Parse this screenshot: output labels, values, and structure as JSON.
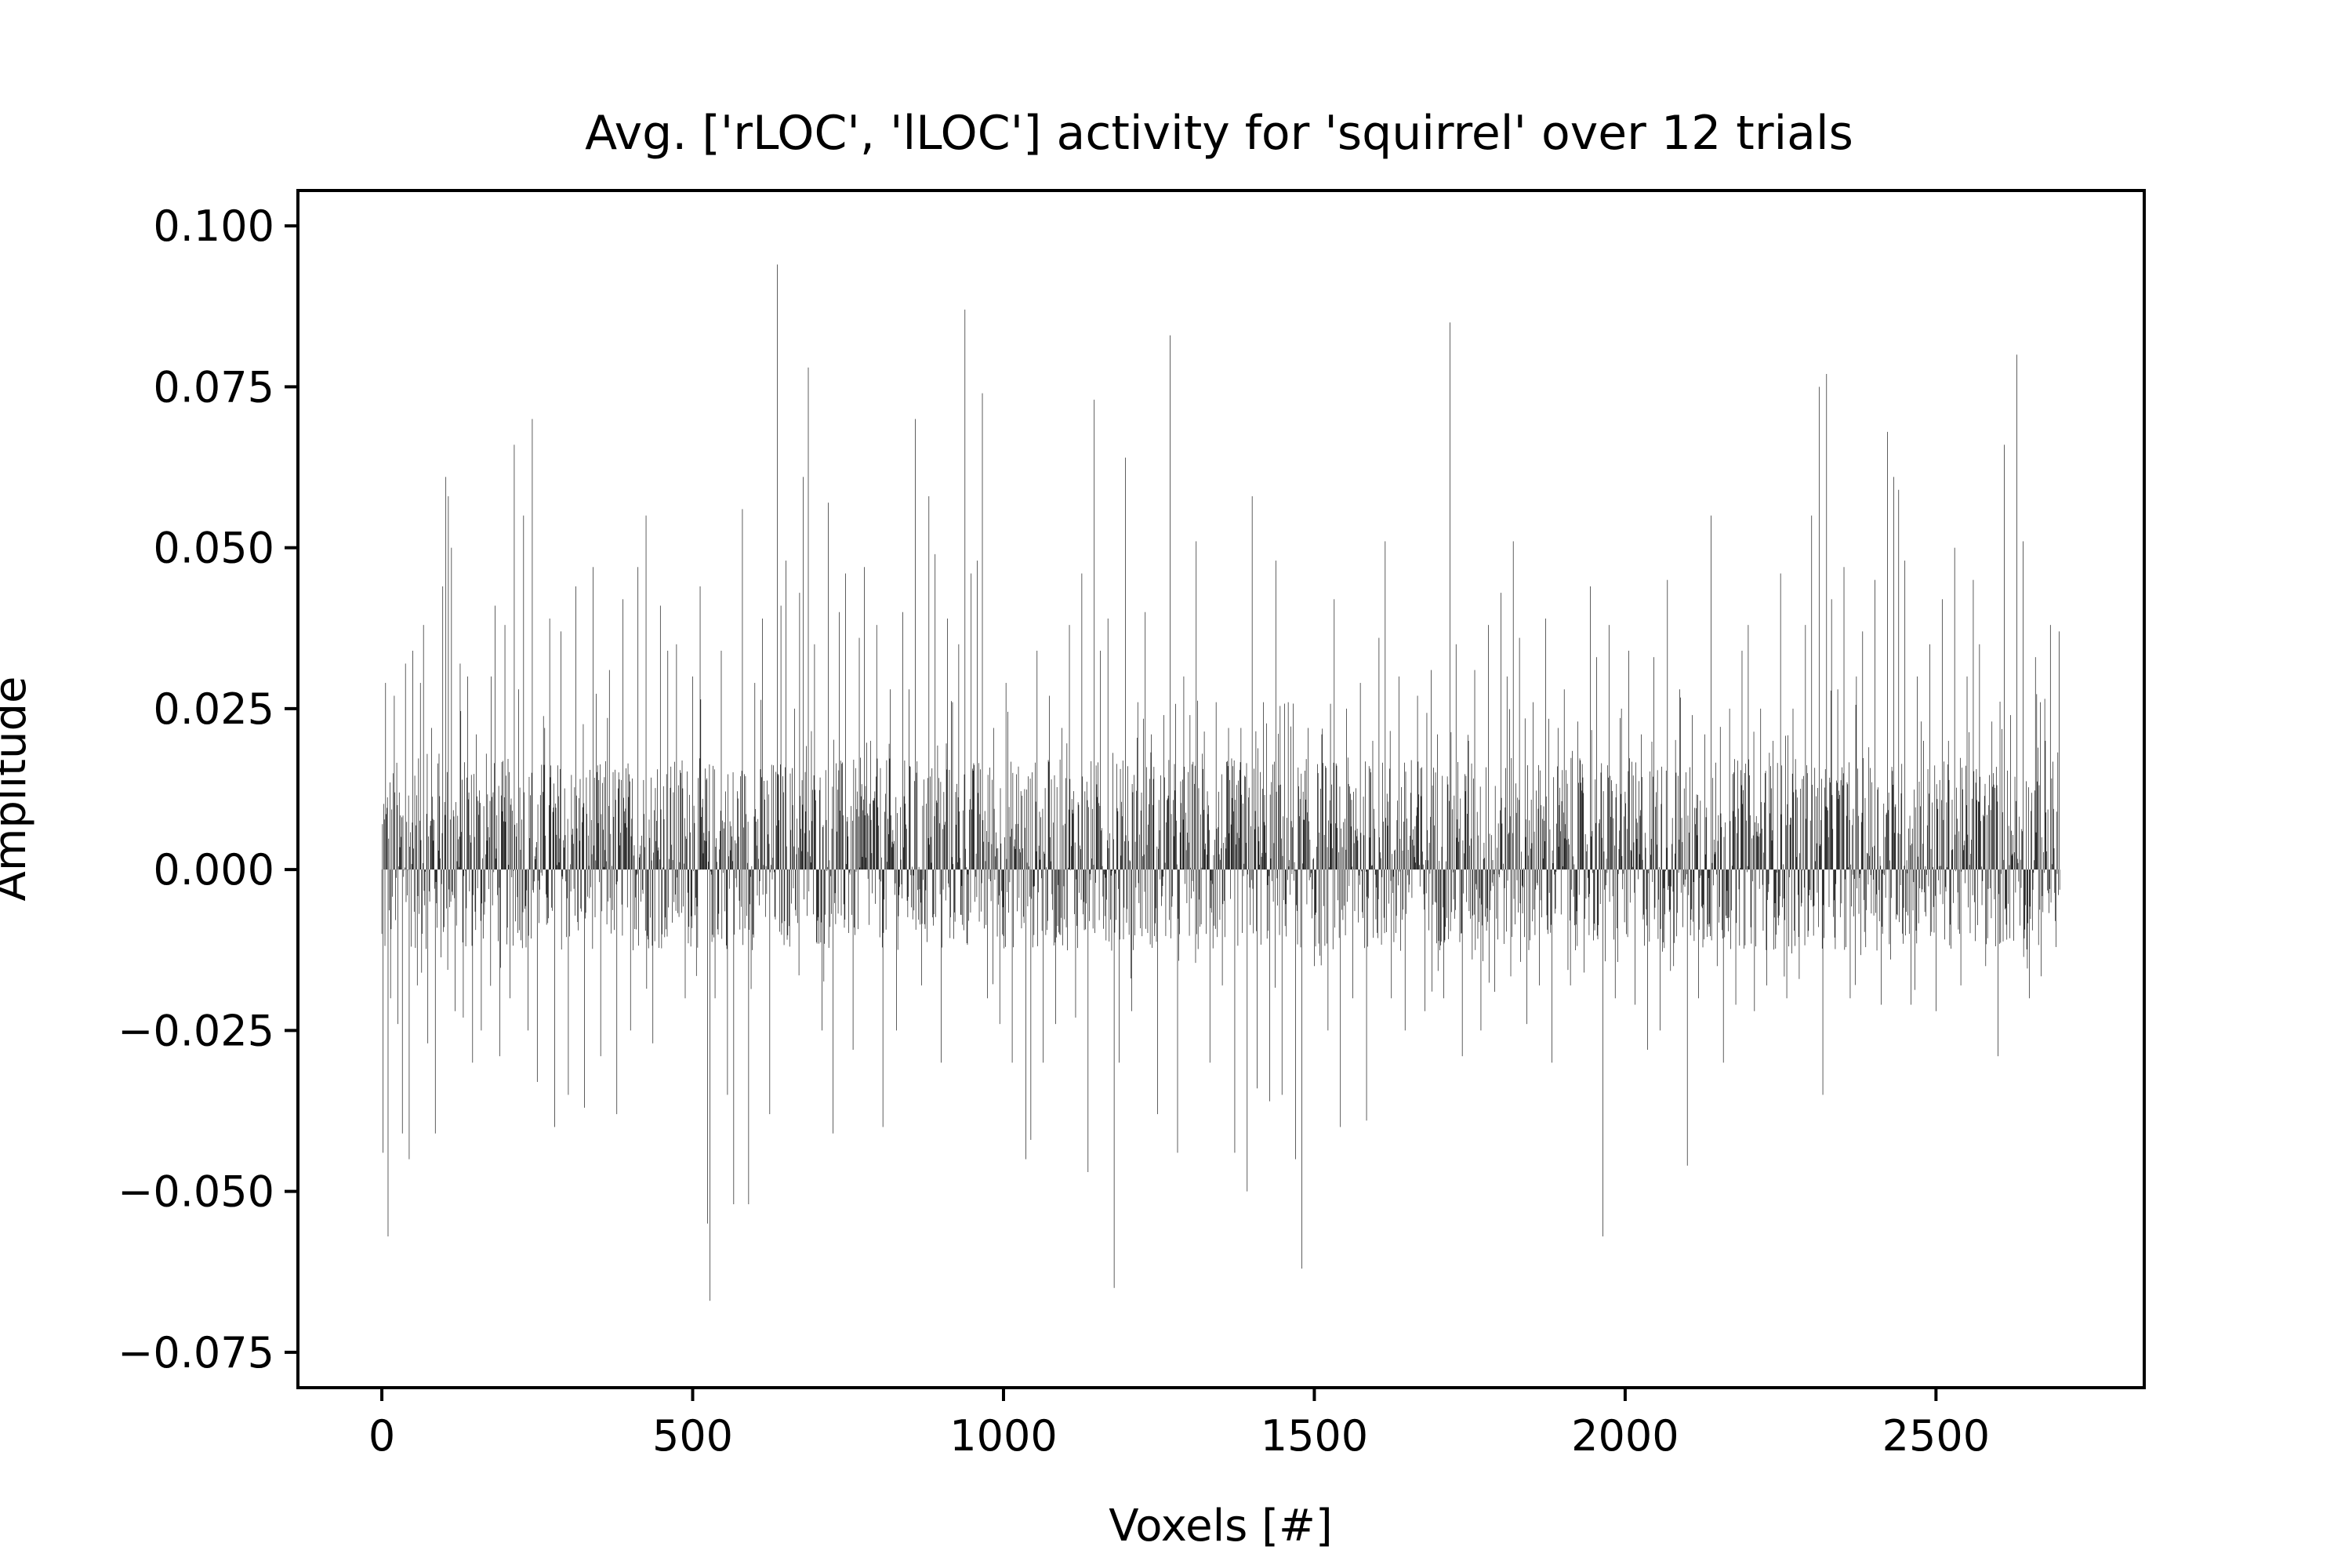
{
  "chart_data": {
    "type": "bar",
    "title": "Avg. ['rLOC', 'lLOC'] activity for 'squirrel' over 12 trials",
    "xlabel": "Voxels [#]",
    "ylabel": "Amplitude",
    "xlim": [
      -135,
      2835
    ],
    "ylim": [
      -0.0805,
      0.1055
    ],
    "xticks": [
      0,
      500,
      1000,
      1500,
      2000,
      2500
    ],
    "xtick_labels": [
      "0",
      "500",
      "1000",
      "1500",
      "2000",
      "2500"
    ],
    "yticks": [
      -0.075,
      -0.05,
      -0.025,
      0.0,
      0.025,
      0.05,
      0.075,
      0.1
    ],
    "ytick_labels": [
      "−0.075",
      "−0.050",
      "−0.025",
      "0.000",
      "0.025",
      "0.050",
      "0.075",
      "0.100"
    ],
    "grid": false,
    "legend": "none",
    "bar_color": "#000000",
    "n_voxels": 2700,
    "x_spacing": 1,
    "anchors": [
      [
        0,
        -0.01
      ],
      [
        2,
        -0.044
      ],
      [
        6,
        0.029
      ],
      [
        10,
        -0.057
      ],
      [
        14,
        -0.02
      ],
      [
        20,
        0.027
      ],
      [
        26,
        -0.024
      ],
      [
        33,
        -0.041
      ],
      [
        38,
        0.032
      ],
      [
        44,
        -0.045
      ],
      [
        50,
        0.034
      ],
      [
        57,
        -0.018
      ],
      [
        62,
        0.029
      ],
      [
        67,
        0.038
      ],
      [
        74,
        -0.027
      ],
      [
        80,
        0.022
      ],
      [
        86,
        -0.041
      ],
      [
        92,
        0.018
      ],
      [
        98,
        0.044
      ],
      [
        103,
        0.061
      ],
      [
        107,
        0.058
      ],
      [
        112,
        0.05
      ],
      [
        118,
        -0.022
      ],
      [
        126,
        0.032
      ],
      [
        131,
        -0.023
      ],
      [
        138,
        0.03
      ],
      [
        146,
        -0.03
      ],
      [
        152,
        0.021
      ],
      [
        160,
        -0.025
      ],
      [
        168,
        0.018
      ],
      [
        176,
        0.03
      ],
      [
        182,
        0.041
      ],
      [
        190,
        -0.029
      ],
      [
        198,
        0.038
      ],
      [
        206,
        -0.02
      ],
      [
        213,
        0.066
      ],
      [
        220,
        0.028
      ],
      [
        228,
        0.055
      ],
      [
        235,
        -0.025
      ],
      [
        242,
        0.07
      ],
      [
        250,
        -0.033
      ],
      [
        262,
        0.022
      ],
      [
        270,
        0.039
      ],
      [
        278,
        -0.04
      ],
      [
        288,
        0.037
      ],
      [
        300,
        -0.035
      ],
      [
        312,
        0.044
      ],
      [
        326,
        -0.037
      ],
      [
        340,
        0.047
      ],
      [
        352,
        -0.029
      ],
      [
        366,
        0.031
      ],
      [
        378,
        -0.038
      ],
      [
        388,
        0.042
      ],
      [
        400,
        -0.025
      ],
      [
        412,
        0.047
      ],
      [
        425,
        0.055
      ],
      [
        436,
        -0.027
      ],
      [
        448,
        0.041
      ],
      [
        460,
        0.034
      ],
      [
        474,
        0.035
      ],
      [
        488,
        -0.02
      ],
      [
        500,
        0.03
      ],
      [
        512,
        0.044
      ],
      [
        524,
        -0.055
      ],
      [
        528,
        -0.067
      ],
      [
        536,
        -0.02
      ],
      [
        546,
        0.034
      ],
      [
        556,
        -0.035
      ],
      [
        566,
        -0.052
      ],
      [
        580,
        0.056
      ],
      [
        590,
        -0.052
      ],
      [
        600,
        0.029
      ],
      [
        612,
        0.039
      ],
      [
        624,
        -0.038
      ],
      [
        636,
        0.094
      ],
      [
        642,
        0.041
      ],
      [
        650,
        0.048
      ],
      [
        664,
        0.025
      ],
      [
        672,
        0.043
      ],
      [
        678,
        0.061
      ],
      [
        686,
        0.078
      ],
      [
        696,
        0.035
      ],
      [
        708,
        -0.025
      ],
      [
        718,
        0.057
      ],
      [
        726,
        -0.041
      ],
      [
        736,
        0.04
      ],
      [
        746,
        0.046
      ],
      [
        758,
        -0.028
      ],
      [
        768,
        0.036
      ],
      [
        776,
        0.047
      ],
      [
        786,
        0.02
      ],
      [
        796,
        0.038
      ],
      [
        806,
        -0.04
      ],
      [
        818,
        0.028
      ],
      [
        828,
        -0.025
      ],
      [
        838,
        0.04
      ],
      [
        848,
        0.028
      ],
      [
        858,
        0.07
      ],
      [
        868,
        -0.018
      ],
      [
        880,
        0.058
      ],
      [
        890,
        0.049
      ],
      [
        900,
        -0.03
      ],
      [
        910,
        0.039
      ],
      [
        918,
        0.026
      ],
      [
        928,
        0.035
      ],
      [
        938,
        0.087
      ],
      [
        948,
        0.046
      ],
      [
        958,
        0.048
      ],
      [
        966,
        0.074
      ],
      [
        974,
        -0.02
      ],
      [
        984,
        0.022
      ],
      [
        994,
        -0.024
      ],
      [
        1004,
        0.029
      ],
      [
        1014,
        -0.03
      ],
      [
        1024,
        0.016
      ],
      [
        1036,
        -0.045
      ],
      [
        1044,
        -0.042
      ],
      [
        1054,
        0.034
      ],
      [
        1064,
        -0.03
      ],
      [
        1074,
        0.027
      ],
      [
        1084,
        -0.024
      ],
      [
        1094,
        0.022
      ],
      [
        1106,
        0.038
      ],
      [
        1116,
        -0.023
      ],
      [
        1126,
        0.046
      ],
      [
        1136,
        -0.047
      ],
      [
        1146,
        0.073
      ],
      [
        1156,
        0.034
      ],
      [
        1168,
        0.039
      ],
      [
        1178,
        -0.065
      ],
      [
        1186,
        -0.03
      ],
      [
        1196,
        0.064
      ],
      [
        1206,
        -0.022
      ],
      [
        1216,
        0.026
      ],
      [
        1228,
        0.04
      ],
      [
        1238,
        0.021
      ],
      [
        1248,
        -0.038
      ],
      [
        1258,
        0.024
      ],
      [
        1268,
        0.083
      ],
      [
        1280,
        -0.044
      ],
      [
        1290,
        0.03
      ],
      [
        1300,
        0.024
      ],
      [
        1310,
        0.051
      ],
      [
        1320,
        0.018
      ],
      [
        1332,
        -0.03
      ],
      [
        1342,
        0.026
      ],
      [
        1352,
        -0.018
      ],
      [
        1362,
        0.022
      ],
      [
        1372,
        -0.044
      ],
      [
        1382,
        0.022
      ],
      [
        1392,
        -0.05
      ],
      [
        1400,
        0.058
      ],
      [
        1408,
        -0.034
      ],
      [
        1418,
        0.026
      ],
      [
        1428,
        -0.036
      ],
      [
        1438,
        0.048
      ],
      [
        1448,
        -0.035
      ],
      [
        1458,
        0.026
      ],
      [
        1470,
        -0.045
      ],
      [
        1480,
        -0.062
      ],
      [
        1490,
        0.022
      ],
      [
        1500,
        -0.015
      ],
      [
        1512,
        0.021
      ],
      [
        1522,
        -0.025
      ],
      [
        1532,
        0.042
      ],
      [
        1542,
        -0.04
      ],
      [
        1552,
        0.025
      ],
      [
        1562,
        -0.02
      ],
      [
        1574,
        0.029
      ],
      [
        1584,
        -0.039
      ],
      [
        1594,
        0.02
      ],
      [
        1604,
        0.036
      ],
      [
        1614,
        0.051
      ],
      [
        1624,
        -0.02
      ],
      [
        1636,
        0.03
      ],
      [
        1646,
        -0.025
      ],
      [
        1656,
        0.017
      ],
      [
        1666,
        0.027
      ],
      [
        1678,
        -0.022
      ],
      [
        1688,
        0.031
      ],
      [
        1698,
        0.021
      ],
      [
        1708,
        -0.02
      ],
      [
        1718,
        0.085
      ],
      [
        1728,
        0.035
      ],
      [
        1738,
        -0.029
      ],
      [
        1748,
        0.02
      ],
      [
        1758,
        0.031
      ],
      [
        1768,
        -0.025
      ],
      [
        1780,
        0.038
      ],
      [
        1790,
        -0.019
      ],
      [
        1800,
        0.043
      ],
      [
        1810,
        0.03
      ],
      [
        1820,
        0.051
      ],
      [
        1830,
        0.036
      ],
      [
        1842,
        -0.024
      ],
      [
        1852,
        0.026
      ],
      [
        1862,
        -0.018
      ],
      [
        1872,
        0.039
      ],
      [
        1882,
        -0.03
      ],
      [
        1892,
        0.022
      ],
      [
        1902,
        0.028
      ],
      [
        1912,
        -0.018
      ],
      [
        1924,
        0.023
      ],
      [
        1934,
        -0.016
      ],
      [
        1944,
        0.044
      ],
      [
        1954,
        0.033
      ],
      [
        1964,
        -0.057
      ],
      [
        1974,
        0.038
      ],
      [
        1984,
        -0.02
      ],
      [
        1994,
        0.025
      ],
      [
        2006,
        0.034
      ],
      [
        2016,
        -0.021
      ],
      [
        2026,
        0.021
      ],
      [
        2036,
        -0.028
      ],
      [
        2046,
        0.033
      ],
      [
        2056,
        -0.025
      ],
      [
        2068,
        0.045
      ],
      [
        2078,
        -0.015
      ],
      [
        2088,
        0.028
      ],
      [
        2100,
        -0.046
      ],
      [
        2108,
        0.024
      ],
      [
        2118,
        -0.02
      ],
      [
        2128,
        0.021
      ],
      [
        2138,
        0.055
      ],
      [
        2148,
        -0.015
      ],
      [
        2158,
        -0.03
      ],
      [
        2168,
        0.025
      ],
      [
        2178,
        -0.021
      ],
      [
        2188,
        0.034
      ],
      [
        2198,
        0.038
      ],
      [
        2208,
        -0.022
      ],
      [
        2218,
        0.025
      ],
      [
        2228,
        -0.018
      ],
      [
        2238,
        0.02
      ],
      [
        2250,
        0.046
      ],
      [
        2260,
        -0.02
      ],
      [
        2270,
        0.025
      ],
      [
        2280,
        -0.017
      ],
      [
        2290,
        0.038
      ],
      [
        2300,
        0.055
      ],
      [
        2312,
        0.075
      ],
      [
        2318,
        -0.035
      ],
      [
        2324,
        0.077
      ],
      [
        2332,
        0.042
      ],
      [
        2342,
        0.028
      ],
      [
        2352,
        0.047
      ],
      [
        2362,
        -0.02
      ],
      [
        2372,
        0.03
      ],
      [
        2382,
        0.037
      ],
      [
        2392,
        0.019
      ],
      [
        2402,
        0.045
      ],
      [
        2412,
        -0.021
      ],
      [
        2422,
        0.068
      ],
      [
        2432,
        0.061
      ],
      [
        2440,
        0.059
      ],
      [
        2450,
        0.048
      ],
      [
        2460,
        -0.021
      ],
      [
        2470,
        0.03
      ],
      [
        2480,
        0.02
      ],
      [
        2490,
        0.035
      ],
      [
        2500,
        -0.022
      ],
      [
        2510,
        0.042
      ],
      [
        2520,
        0.02
      ],
      [
        2530,
        0.05
      ],
      [
        2540,
        -0.018
      ],
      [
        2550,
        0.03
      ],
      [
        2560,
        0.045
      ],
      [
        2570,
        0.035
      ],
      [
        2580,
        -0.015
      ],
      [
        2590,
        0.023
      ],
      [
        2600,
        -0.029
      ],
      [
        2610,
        0.066
      ],
      [
        2620,
        0.024
      ],
      [
        2630,
        0.08
      ],
      [
        2640,
        0.051
      ],
      [
        2650,
        -0.02
      ],
      [
        2660,
        0.033
      ],
      [
        2668,
        0.026
      ],
      [
        2676,
        0.02
      ],
      [
        2684,
        0.038
      ],
      [
        2692,
        -0.008
      ],
      [
        2698,
        0.037
      ]
    ]
  }
}
